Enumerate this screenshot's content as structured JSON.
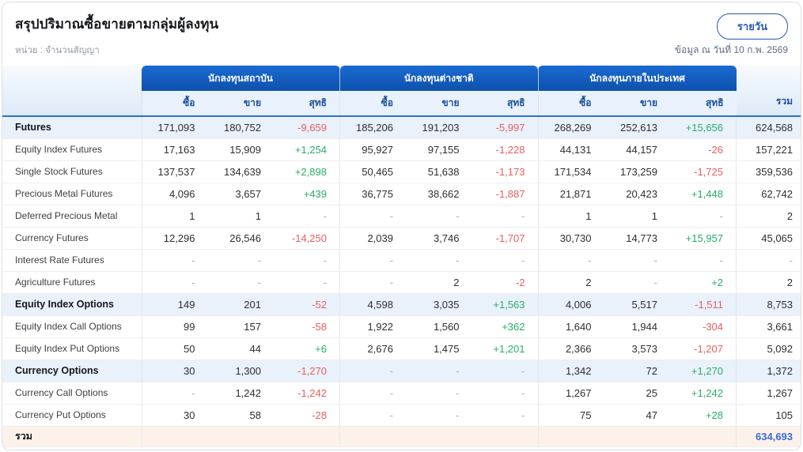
{
  "header": {
    "title": "สรุปปริมาณซื้อขายตามกลุ่มผู้ลงทุน",
    "period_button": "รายวัน",
    "unit": "หน่วย : จำนวนสัญญา",
    "as_of": "ข้อมูล ณ วันที่ 10 ก.พ. 2569"
  },
  "colors": {
    "header_blue_top": "#1a6ad3",
    "header_blue_bottom": "#0e51ab",
    "accent_blue": "#2158b8",
    "positive_green": "#27ae66",
    "negative_red": "#e85d5d",
    "grand_total_blue": "#3a6bd8",
    "section_row_bg": "#e9f1fb",
    "total_row_bg": "#fdf2ea"
  },
  "table": {
    "groups": [
      "นักลงทุนสถาบัน",
      "นักลงทุนต่างชาติ",
      "นักลงทุนภายในประเทศ"
    ],
    "sub_headers": [
      "ซื้อ",
      "ขาย",
      "สุทธิ"
    ],
    "total_header": "รวม",
    "rows": [
      {
        "label": "Futures",
        "type": "section",
        "cells": [
          "171,093",
          "180,752",
          "-9,659",
          "185,206",
          "191,203",
          "-5,997",
          "268,269",
          "252,613",
          "+15,656"
        ],
        "total": "624,568"
      },
      {
        "label": "Equity Index Futures",
        "type": "sub",
        "cells": [
          "17,163",
          "15,909",
          "+1,254",
          "95,927",
          "97,155",
          "-1,228",
          "44,131",
          "44,157",
          "-26"
        ],
        "total": "157,221"
      },
      {
        "label": "Single Stock Futures",
        "type": "sub",
        "cells": [
          "137,537",
          "134,639",
          "+2,898",
          "50,465",
          "51,638",
          "-1,173",
          "171,534",
          "173,259",
          "-1,725"
        ],
        "total": "359,536"
      },
      {
        "label": "Precious Metal Futures",
        "type": "sub",
        "cells": [
          "4,096",
          "3,657",
          "+439",
          "36,775",
          "38,662",
          "-1,887",
          "21,871",
          "20,423",
          "+1,448"
        ],
        "total": "62,742"
      },
      {
        "label": "Deferred Precious Metal",
        "type": "sub",
        "cells": [
          "1",
          "1",
          "-",
          "-",
          "-",
          "-",
          "1",
          "1",
          "-"
        ],
        "total": "2"
      },
      {
        "label": "Currency Futures",
        "type": "sub",
        "cells": [
          "12,296",
          "26,546",
          "-14,250",
          "2,039",
          "3,746",
          "-1,707",
          "30,730",
          "14,773",
          "+15,957"
        ],
        "total": "45,065"
      },
      {
        "label": "Interest Rate Futures",
        "type": "sub",
        "cells": [
          "-",
          "-",
          "-",
          "-",
          "-",
          "-",
          "-",
          "-",
          "-"
        ],
        "total": "-"
      },
      {
        "label": "Agriculture Futures",
        "type": "sub",
        "cells": [
          "-",
          "-",
          "-",
          "-",
          "2",
          "-2",
          "2",
          "-",
          "+2"
        ],
        "total": "2"
      },
      {
        "label": "Equity Index Options",
        "type": "section",
        "cells": [
          "149",
          "201",
          "-52",
          "4,598",
          "3,035",
          "+1,563",
          "4,006",
          "5,517",
          "-1,511"
        ],
        "total": "8,753"
      },
      {
        "label": "Equity Index Call Options",
        "type": "sub",
        "cells": [
          "99",
          "157",
          "-58",
          "1,922",
          "1,560",
          "+362",
          "1,640",
          "1,944",
          "-304"
        ],
        "total": "3,661"
      },
      {
        "label": "Equity Index Put Options",
        "type": "sub",
        "cells": [
          "50",
          "44",
          "+6",
          "2,676",
          "1,475",
          "+1,201",
          "2,366",
          "3,573",
          "-1,207"
        ],
        "total": "5,092"
      },
      {
        "label": "Currency Options",
        "type": "section",
        "cells": [
          "30",
          "1,300",
          "-1,270",
          "-",
          "-",
          "-",
          "1,342",
          "72",
          "+1,270"
        ],
        "total": "1,372"
      },
      {
        "label": "Currency Call Options",
        "type": "sub",
        "cells": [
          "-",
          "1,242",
          "-1,242",
          "-",
          "-",
          "-",
          "1,267",
          "25",
          "+1,242"
        ],
        "total": "1,267"
      },
      {
        "label": "Currency Put Options",
        "type": "sub",
        "cells": [
          "30",
          "58",
          "-28",
          "-",
          "-",
          "-",
          "75",
          "47",
          "+28"
        ],
        "total": "105"
      },
      {
        "label": "รวม",
        "type": "total",
        "cells": [
          "",
          "",
          "",
          "",
          "",
          "",
          "",
          "",
          ""
        ],
        "total": "634,693"
      }
    ]
  }
}
